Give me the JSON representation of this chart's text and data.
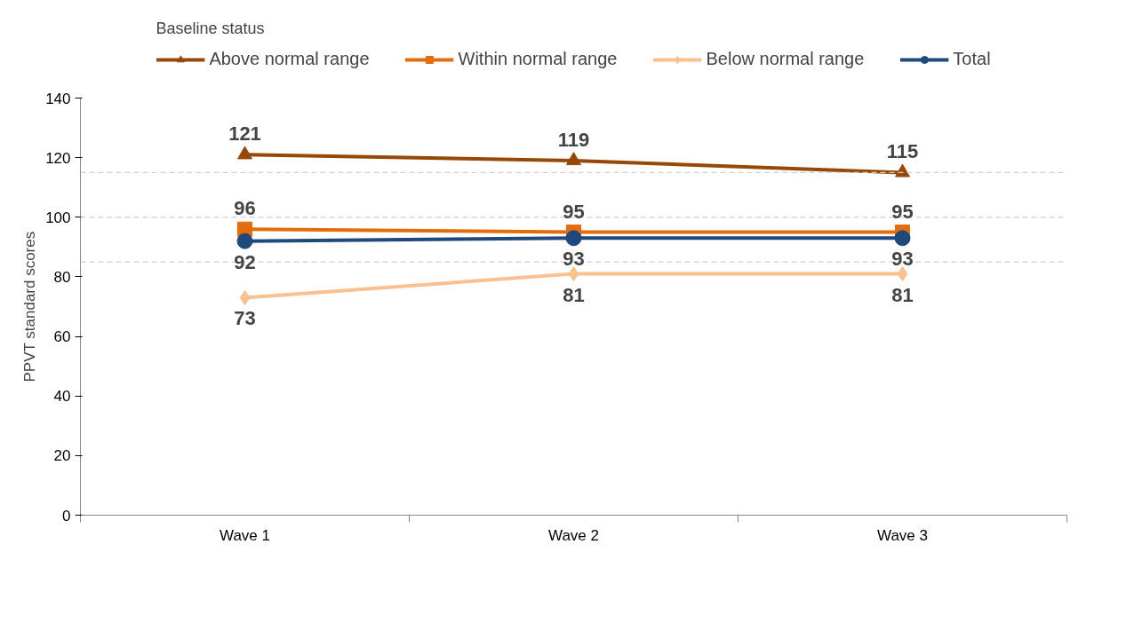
{
  "chart_data": {
    "type": "line",
    "legend_title": "Baseline status",
    "ylabel": "PPVT standard scores",
    "categories": [
      "Wave 1",
      "Wave 2",
      "Wave 3"
    ],
    "series": [
      {
        "name": "Above normal range",
        "color": "#974706",
        "marker": "triangle",
        "values": [
          121,
          119,
          115
        ]
      },
      {
        "name": "Within normal range",
        "color": "#e46c0a",
        "marker": "square",
        "values": [
          96,
          95,
          95
        ]
      },
      {
        "name": "Below normal range",
        "color": "#fac090",
        "marker": "diamond",
        "values": [
          73,
          81,
          81
        ]
      },
      {
        "name": "Total",
        "color": "#1f497d",
        "marker": "circle",
        "values": [
          92,
          93,
          93
        ]
      }
    ],
    "ylim": [
      0,
      140
    ],
    "yticks": [
      0,
      20,
      40,
      60,
      80,
      100,
      120,
      140
    ],
    "data_labels": true,
    "legend": "top",
    "grid": false,
    "line_style": "solid",
    "ref_lines": [
      {
        "axis": "y",
        "value": 115,
        "color": "#d0d0d0",
        "line_style": "dashed"
      },
      {
        "axis": "y",
        "value": 100,
        "color": "#d0d0d0",
        "line_style": "dashed"
      },
      {
        "axis": "y",
        "value": 85,
        "color": "#d0d0d0",
        "line_style": "dashed"
      }
    ]
  }
}
